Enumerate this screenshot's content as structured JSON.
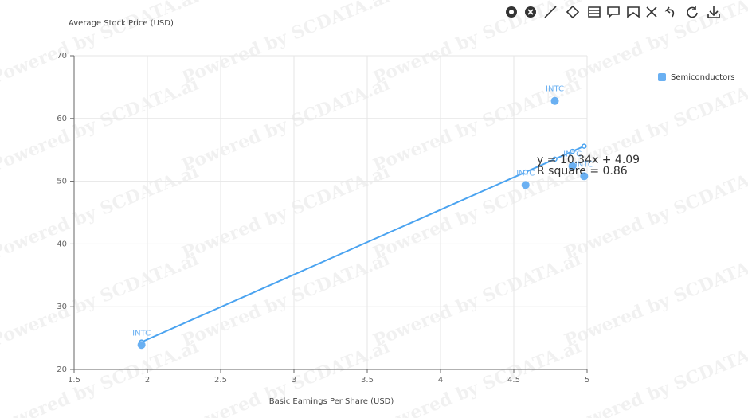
{
  "chart_data": {
    "type": "scatter",
    "watermark": "Powered by SCDATA.ai",
    "ylabel": "Average Stock Price (USD)",
    "xlabel": "Basic Earnings Per Share (USD)",
    "xlim": [
      1.5,
      5
    ],
    "ylim": [
      20,
      70
    ],
    "xticks": [
      1.5,
      2,
      2.5,
      3,
      3.5,
      4,
      4.5,
      5
    ],
    "yticks": [
      20,
      30,
      40,
      50,
      60,
      70
    ],
    "grid": true,
    "legend_position": "top-right",
    "series": [
      {
        "name": "Semiconductors",
        "color": "#6ab0f2",
        "x": [
          1.96,
          4.78,
          4.58,
          4.9,
          4.98
        ],
        "values": [
          23.9,
          62.8,
          49.4,
          52.4,
          50.8
        ],
        "labels": [
          "INTC",
          "INTC",
          "INTC",
          "INTC",
          "INTC"
        ]
      }
    ],
    "trend": {
      "color": "#4aa3f0",
      "x": [
        1.96,
        4.58,
        4.78,
        4.9,
        4.98
      ],
      "values": [
        24.36,
        51.45,
        53.52,
        54.76,
        55.58
      ],
      "equation": "y = 10.34x + 4.09",
      "r_square": "R square = 0.86"
    }
  }
}
